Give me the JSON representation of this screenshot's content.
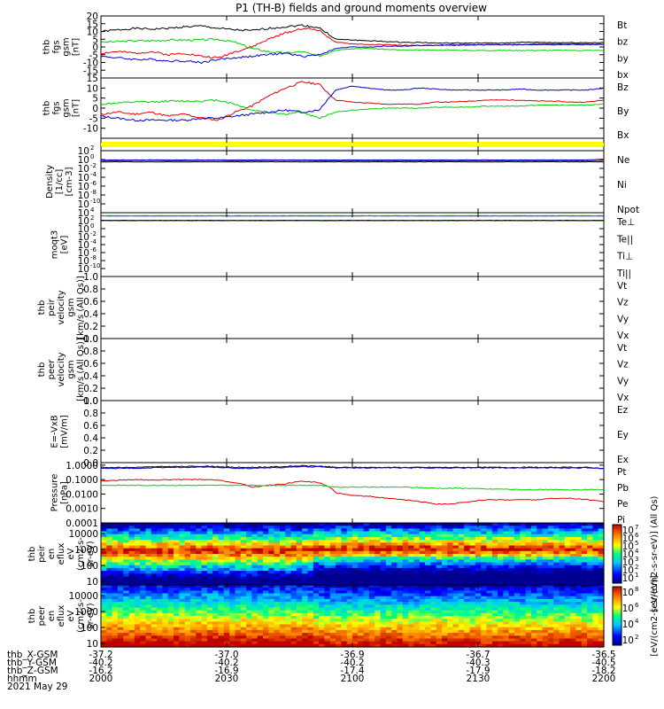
{
  "title": "P1 (TH-B) fields and ground moments overview",
  "colors": {
    "black": "#000000",
    "red": "#e00000",
    "green": "#00d000",
    "blue": "#0000d0",
    "yellow": "#ffff00"
  },
  "chart_data": [
    {
      "type": "line",
      "ylabel": [
        "thb",
        "fgs",
        "gsm",
        "[nT]"
      ],
      "ylim": [
        -20,
        20
      ],
      "yticks": [
        20,
        15,
        10,
        5,
        0,
        -5,
        -10,
        -15
      ],
      "series": [
        {
          "name": "Bt",
          "color": "black",
          "values": [
            10,
            11,
            12,
            11.5,
            12,
            13,
            13.5,
            12,
            11,
            10.5,
            12,
            13,
            14,
            12.5,
            5,
            4.5,
            4,
            3.5,
            3,
            3,
            2.5,
            2.5,
            2.5,
            2.5,
            2.5,
            3,
            3,
            2.8,
            2.8,
            2.8,
            2.8
          ]
        },
        {
          "name": "bz",
          "color": "red",
          "values": [
            -4,
            -3,
            -4,
            -3,
            -5,
            -4,
            -6,
            -7,
            -3,
            0,
            5,
            9,
            12,
            11,
            3,
            2,
            1.5,
            1.5,
            1,
            1,
            1,
            1,
            1.2,
            1.5,
            1.5,
            1.5,
            2,
            2,
            2,
            2,
            2
          ]
        },
        {
          "name": "by",
          "color": "green",
          "values": [
            3,
            3.5,
            4,
            4,
            4.5,
            4.5,
            4.5,
            5,
            3,
            -1,
            -3,
            -4,
            -3,
            -6,
            -2,
            -1,
            -1,
            -1.5,
            -2,
            -2,
            -2,
            -2,
            -2.2,
            -2.2,
            -2.2,
            -2.2,
            -2.2,
            -2.2,
            -2.2,
            -2.2,
            -2.2
          ]
        },
        {
          "name": "bx",
          "color": "blue",
          "values": [
            -6,
            -7,
            -8,
            -8,
            -9,
            -9,
            -10,
            -8,
            -7,
            -6,
            -5,
            -4,
            -6,
            -5,
            -1,
            0,
            0,
            0.5,
            0.5,
            1,
            1,
            1.5,
            1.5,
            1.5,
            1.5,
            1.5,
            1.5,
            1.5,
            1.5,
            1.5,
            1.5
          ]
        }
      ]
    },
    {
      "type": "line",
      "ylabel": [
        "thb",
        "fgs",
        "gsm",
        "[nT]"
      ],
      "ylim": [
        -15,
        15
      ],
      "yticks": [
        15,
        10,
        5,
        0,
        -5,
        -10
      ],
      "series": [
        {
          "name": "Bz",
          "color": "red",
          "values": [
            -3,
            -2,
            -3,
            -2,
            -4,
            -3,
            -5,
            -6,
            -2,
            1,
            6,
            10,
            13,
            12,
            4,
            3,
            2.5,
            2,
            2,
            2,
            3,
            3,
            3.5,
            4,
            4,
            4,
            3.5,
            3.5,
            3,
            3,
            4
          ]
        },
        {
          "name": "By",
          "color": "green",
          "values": [
            2,
            2.5,
            3,
            3,
            3.5,
            3.5,
            3.5,
            4,
            2,
            -1,
            -2,
            -3,
            -2,
            -5,
            -2,
            -1,
            -0.5,
            0,
            0,
            0,
            0.5,
            0.5,
            0.5,
            1,
            1,
            1,
            1.5,
            1.5,
            1.5,
            1.5,
            2
          ]
        },
        {
          "name": "Bx",
          "color": "blue",
          "values": [
            -4,
            -5,
            -6,
            -6,
            -6,
            -6,
            -5,
            -5,
            -4,
            -3,
            -2,
            -1,
            -2,
            -1,
            9,
            11,
            10,
            9,
            9,
            10,
            9.5,
            9,
            9,
            9,
            9,
            9.5,
            9,
            9,
            9,
            9,
            10
          ]
        }
      ]
    },
    {
      "type": "bar",
      "name": "qflag",
      "color": "yellow"
    },
    {
      "type": "line",
      "log": true,
      "ylabel": [
        "Density",
        "[1/cc]",
        "[cm-3]"
      ],
      "ylim": [
        1e-12,
        100
      ],
      "yticks": [
        "10^2",
        "10^0",
        "10^-2",
        "10^-4",
        "10^-6",
        "10^-8",
        "10^-10"
      ],
      "series": [
        {
          "name": "Ne",
          "color": "red",
          "values": [
            0.5,
            0.5,
            0.6,
            0.6,
            0.5,
            0.5,
            0.6,
            0.6,
            0.5,
            0.5,
            0.6,
            0.6,
            0.6,
            0.5,
            0.5,
            0.5,
            0.5,
            0.5,
            0.5,
            0.5,
            0.5,
            0.5,
            0.5,
            0.5,
            0.5,
            0.5,
            0.5,
            0.5,
            0.5,
            0.5,
            0.6
          ]
        },
        {
          "name": "Ni",
          "color": "black",
          "values": [
            0.3,
            0.3,
            0.3,
            0.3,
            0.3,
            0.3,
            0.3,
            0.3,
            0.3,
            0.3,
            0.3,
            0.3,
            0.3,
            0.3,
            0.3,
            0.3,
            0.3,
            0.3,
            0.3,
            0.3,
            0.3,
            0.3,
            0.3,
            0.3,
            0.3,
            0.3,
            0.3,
            0.3,
            0.3,
            0.3,
            0.3
          ]
        },
        {
          "name": "Npot",
          "color": "blue",
          "values": [
            0.8,
            0.8,
            0.8,
            0.8,
            0.8,
            0.8,
            0.8,
            0.8,
            0.8,
            0.8,
            0.8,
            0.8,
            0.8,
            0.8,
            0.8,
            0.8,
            0.8,
            0.8,
            0.8,
            0.8,
            0.8,
            0.8,
            0.8,
            0.8,
            0.8,
            0.8,
            0.8,
            0.8,
            0.8,
            0.8,
            1.2
          ]
        }
      ]
    },
    {
      "type": "line",
      "log": true,
      "ylabel": [
        "moqt3",
        "[eV]"
      ],
      "ylim": [
        1e-12,
        10000
      ],
      "yticks": [
        "10^4",
        "10^2",
        "10^0",
        "10^-2",
        "10^-4",
        "10^-6",
        "10^-8",
        "10^-10"
      ],
      "series": [
        {
          "name": "Te⊥",
          "color": "red",
          "values": [
            100,
            100,
            100,
            100,
            100,
            100,
            100,
            100,
            100,
            100,
            100,
            100,
            100,
            100,
            100,
            100,
            100,
            100,
            100,
            100,
            100,
            100,
            100,
            100,
            100,
            100,
            100,
            100,
            100,
            100,
            100
          ]
        },
        {
          "name": "Te||",
          "color": "black",
          "values": [
            120,
            120,
            120,
            120,
            120,
            120,
            120,
            120,
            120,
            120,
            120,
            120,
            120,
            120,
            120,
            120,
            120,
            120,
            120,
            120,
            120,
            120,
            120,
            120,
            120,
            120,
            120,
            120,
            120,
            120,
            120
          ]
        },
        {
          "name": "Ti⊥",
          "color": "blue",
          "values": [
            1500,
            1500,
            1500,
            1500,
            1500,
            1500,
            1500,
            1500,
            1500,
            1500,
            1500,
            1500,
            1500,
            1500,
            1500,
            1500,
            1500,
            1500,
            1500,
            1500,
            1500,
            1500,
            1500,
            1500,
            1500,
            1500,
            1500,
            1500,
            1500,
            1500,
            1500
          ]
        },
        {
          "name": "Ti||",
          "color": "green",
          "values": [
            1800,
            1800,
            1800,
            1800,
            1800,
            1800,
            1800,
            1800,
            1800,
            1800,
            1800,
            1800,
            1800,
            1800,
            1800,
            1800,
            1800,
            1800,
            1800,
            1800,
            1800,
            1800,
            1800,
            1800,
            1800,
            1800,
            1800,
            1800,
            1800,
            1800,
            1800
          ]
        }
      ]
    },
    {
      "type": "line",
      "ylabel": [
        "thb",
        "peir",
        "velocity",
        "gsm",
        "[km/s (All Qs)]"
      ],
      "ylim": [
        0,
        1
      ],
      "yticks": [
        "1.0",
        "0.8",
        "0.6",
        "0.4",
        "0.2",
        "0.0"
      ],
      "series": [
        {
          "name": "Vt",
          "color": "black",
          "values": []
        },
        {
          "name": "Vz",
          "color": "red",
          "values": []
        },
        {
          "name": "Vy",
          "color": "green",
          "values": []
        },
        {
          "name": "Vx",
          "color": "blue",
          "values": []
        }
      ]
    },
    {
      "type": "line",
      "ylabel": [
        "thb",
        "peer",
        "velocity",
        "gsm",
        "[km/s (All Qs)]"
      ],
      "ylim": [
        0,
        1
      ],
      "yticks": [
        "1.0",
        "0.8",
        "0.6",
        "0.4",
        "0.2",
        "0.0"
      ],
      "series": [
        {
          "name": "Vt",
          "color": "black",
          "values": []
        },
        {
          "name": "Vz",
          "color": "red",
          "values": []
        },
        {
          "name": "Vy",
          "color": "green",
          "values": []
        },
        {
          "name": "Vx",
          "color": "blue",
          "values": []
        }
      ]
    },
    {
      "type": "line",
      "ylabel": [
        "E=-VxB",
        "[mV/m]"
      ],
      "ylim": [
        0,
        1
      ],
      "yticks": [
        "1.0",
        "0.8",
        "0.6",
        "0.4",
        "0.2",
        "0.0"
      ],
      "series": [
        {
          "name": "Ez",
          "color": "red",
          "values": []
        },
        {
          "name": "Ey",
          "color": "green",
          "values": []
        },
        {
          "name": "Ex",
          "color": "blue",
          "values": []
        }
      ]
    },
    {
      "type": "line",
      "log": true,
      "ylabel": [
        "Pressure",
        "[nPa]"
      ],
      "ylim": [
        0.0001,
        1.5
      ],
      "yticks": [
        "1.0000",
        "0.1000",
        "0.0100",
        "0.0010",
        "0.0001"
      ],
      "series": [
        {
          "name": "Pt",
          "color": "black",
          "values": [
            0.7,
            0.7,
            0.7,
            0.75,
            0.8,
            0.8,
            0.85,
            0.8,
            0.7,
            0.7,
            0.75,
            0.8,
            0.9,
            0.85,
            0.7,
            0.7,
            0.7,
            0.7,
            0.7,
            0.7,
            0.7,
            0.7,
            0.7,
            0.7,
            0.7,
            0.7,
            0.7,
            0.7,
            0.7,
            0.7,
            0.6
          ]
        },
        {
          "name": "Pb",
          "color": "red",
          "values": [
            0.08,
            0.09,
            0.1,
            0.09,
            0.1,
            0.1,
            0.1,
            0.09,
            0.06,
            0.03,
            0.04,
            0.05,
            0.08,
            0.06,
            0.012,
            0.008,
            0.007,
            0.005,
            0.004,
            0.003,
            0.002,
            0.002,
            0.003,
            0.004,
            0.004,
            0.004,
            0.004,
            0.005,
            0.005,
            0.004,
            0.003
          ]
        },
        {
          "name": "Pe",
          "color": "green",
          "values": [
            0.04,
            0.04,
            0.04,
            0.04,
            0.04,
            0.04,
            0.04,
            0.04,
            0.04,
            0.04,
            0.04,
            0.04,
            0.04,
            0.04,
            0.03,
            0.03,
            0.03,
            0.03,
            0.03,
            0.028,
            0.025,
            0.025,
            0.025,
            0.022,
            0.022,
            0.02,
            0.02,
            0.02,
            0.02,
            0.02,
            0.02
          ]
        },
        {
          "name": "Pi",
          "color": "blue",
          "values": [
            0.6,
            0.6,
            0.6,
            0.65,
            0.7,
            0.7,
            0.75,
            0.7,
            0.6,
            0.6,
            0.65,
            0.7,
            0.8,
            0.75,
            0.65,
            0.65,
            0.65,
            0.65,
            0.65,
            0.65,
            0.65,
            0.65,
            0.65,
            0.65,
            0.65,
            0.65,
            0.65,
            0.65,
            0.65,
            0.65,
            0.55
          ]
        }
      ]
    },
    {
      "type": "heatmap",
      "ylabel": [
        "thb",
        "peir",
        "en",
        "eflux",
        "eV",
        "(cm2-s-",
        "sr-eV)"
      ],
      "yticks": [
        "10000",
        "1000",
        "100",
        "10"
      ],
      "colorbar": {
        "label": "[eV/(cm2-s-sr-eV)] (All Qs)",
        "ticks": [
          "10^7",
          "10^6",
          "10^5",
          "10^4",
          "10^3",
          "10^2",
          "10^1"
        ]
      }
    },
    {
      "type": "heatmap",
      "ylabel": [
        "thb",
        "peer",
        "en",
        "eflux",
        "eV",
        "(cm2-s-",
        "sr-eV)"
      ],
      "yticks": [
        "10000",
        "1000",
        "100",
        "10"
      ],
      "colorbar": {
        "label": "[eV/(cm2-s-sr-eV)]",
        "ticks": [
          "10^8",
          "10^6",
          "10^4",
          "10^2"
        ]
      }
    }
  ],
  "xaxis": {
    "rows": [
      {
        "label": "thb_X-GSM",
        "values": [
          "-37.2",
          "-37.0",
          "-36.9",
          "-36.7",
          "-36.5"
        ]
      },
      {
        "label": "thb_Y-GSM",
        "values": [
          "-40.2",
          "-40.2",
          "-40.2",
          "-40.3",
          "-40.5"
        ]
      },
      {
        "label": "thb_Z-GSM",
        "values": [
          "-16.2",
          "-16.9",
          "-17.4",
          "-17.9",
          "-18.2"
        ]
      },
      {
        "label": "hhmm",
        "values": [
          "2000",
          "2030",
          "2100",
          "2130",
          "2200"
        ]
      }
    ],
    "date": "2021 May 29"
  }
}
